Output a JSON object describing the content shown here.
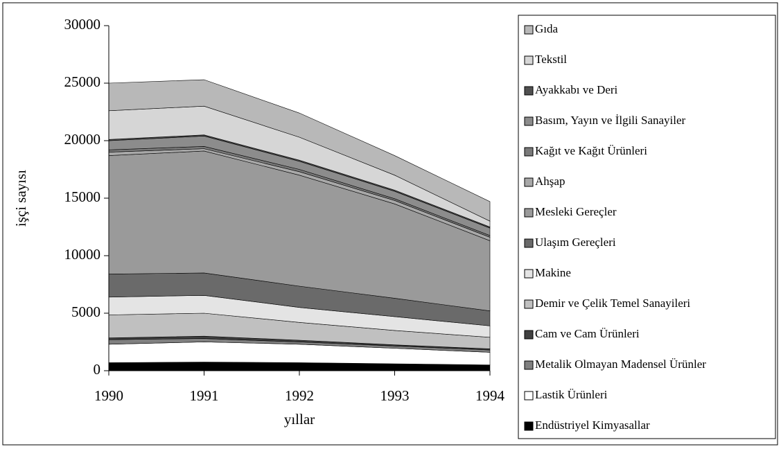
{
  "chart_data": {
    "type": "stacked_area",
    "x_label": "yıllar",
    "y_label": "işçi sayısı",
    "x": [
      1990,
      1991,
      1992,
      1993,
      1994
    ],
    "xlim": [
      1990,
      1994
    ],
    "xticks": [
      1990,
      1991,
      1992,
      1993,
      1994
    ],
    "ylim": [
      0,
      30000
    ],
    "yticks": [
      0,
      5000,
      10000,
      15000,
      20000,
      25000,
      30000
    ],
    "legend": "right",
    "series": [
      {
        "name": "Endüstriyel Kimyasallar",
        "color": "#000000",
        "values": [
          700,
          750,
          700,
          600,
          500
        ]
      },
      {
        "name": "Lastik Ürünleri",
        "color": "#ffffff",
        "values": [
          1600,
          1750,
          1600,
          1350,
          1100
        ]
      },
      {
        "name": "Metalik Olmayan Madensel Ürünler",
        "color": "#808080",
        "values": [
          400,
          300,
          200,
          200,
          200
        ]
      },
      {
        "name": "Cam ve Cam Ürünleri",
        "color": "#404040",
        "values": [
          150,
          200,
          150,
          100,
          100
        ]
      },
      {
        "name": "Demir ve Çelik Temel Sanayileri",
        "color": "#c0c0c0",
        "values": [
          2000,
          2000,
          1550,
          1250,
          1000
        ]
      },
      {
        "name": "Makine",
        "color": "#e4e4e4",
        "values": [
          1550,
          1550,
          1300,
          1200,
          1000
        ]
      },
      {
        "name": "Ulaşım Gereçleri",
        "color": "#6a6a6a",
        "values": [
          2000,
          1950,
          1850,
          1600,
          1300
        ]
      },
      {
        "name": "Mesleki Gereçler",
        "color": "#9a9a9a",
        "values": [
          10300,
          10600,
          9650,
          8200,
          6100
        ]
      },
      {
        "name": "Ahşap",
        "color": "#a8a8a8",
        "values": [
          300,
          200,
          300,
          300,
          300
        ]
      },
      {
        "name": "Kağıt ve Kağıt Ürünleri",
        "color": "#7a7a7a",
        "values": [
          200,
          200,
          200,
          150,
          150
        ]
      },
      {
        "name": "Basım, Yayın ve İlgili Sanayiler",
        "color": "#8c8c8c",
        "values": [
          800,
          900,
          700,
          650,
          650
        ]
      },
      {
        "name": "Ayakkabı ve Deri",
        "color": "#505050",
        "values": [
          100,
          100,
          100,
          100,
          100
        ]
      },
      {
        "name": "Tekstil",
        "color": "#d6d6d6",
        "values": [
          2500,
          2500,
          2000,
          1300,
          500
        ]
      },
      {
        "name": "Gıda",
        "color": "#b8b8b8",
        "values": [
          2400,
          2300,
          2100,
          1700,
          1700
        ]
      }
    ]
  }
}
